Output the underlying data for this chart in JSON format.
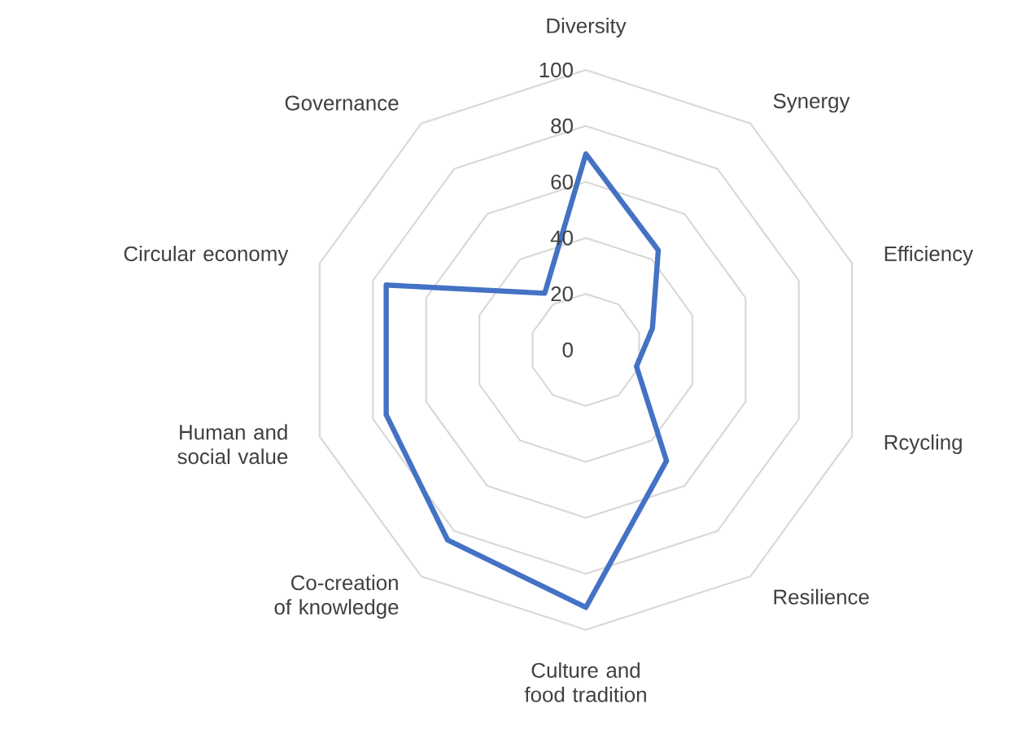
{
  "chart_data": {
    "type": "radar",
    "categories": [
      "Diversity",
      "Synergy",
      "Efficiency",
      "Rcycling",
      "Resilience",
      "Culture and food tradition",
      "Co-creation of knowledge",
      "Human and social value",
      "Circular economy",
      "Governance"
    ],
    "series": [
      {
        "color": "#4472c4",
        "values": [
          70,
          44,
          25,
          19,
          49,
          92,
          84,
          75,
          75,
          25
        ]
      }
    ],
    "ylim": [
      0,
      100
    ],
    "yticks": [
      0,
      20,
      40,
      60,
      80,
      100
    ],
    "grid": true
  }
}
